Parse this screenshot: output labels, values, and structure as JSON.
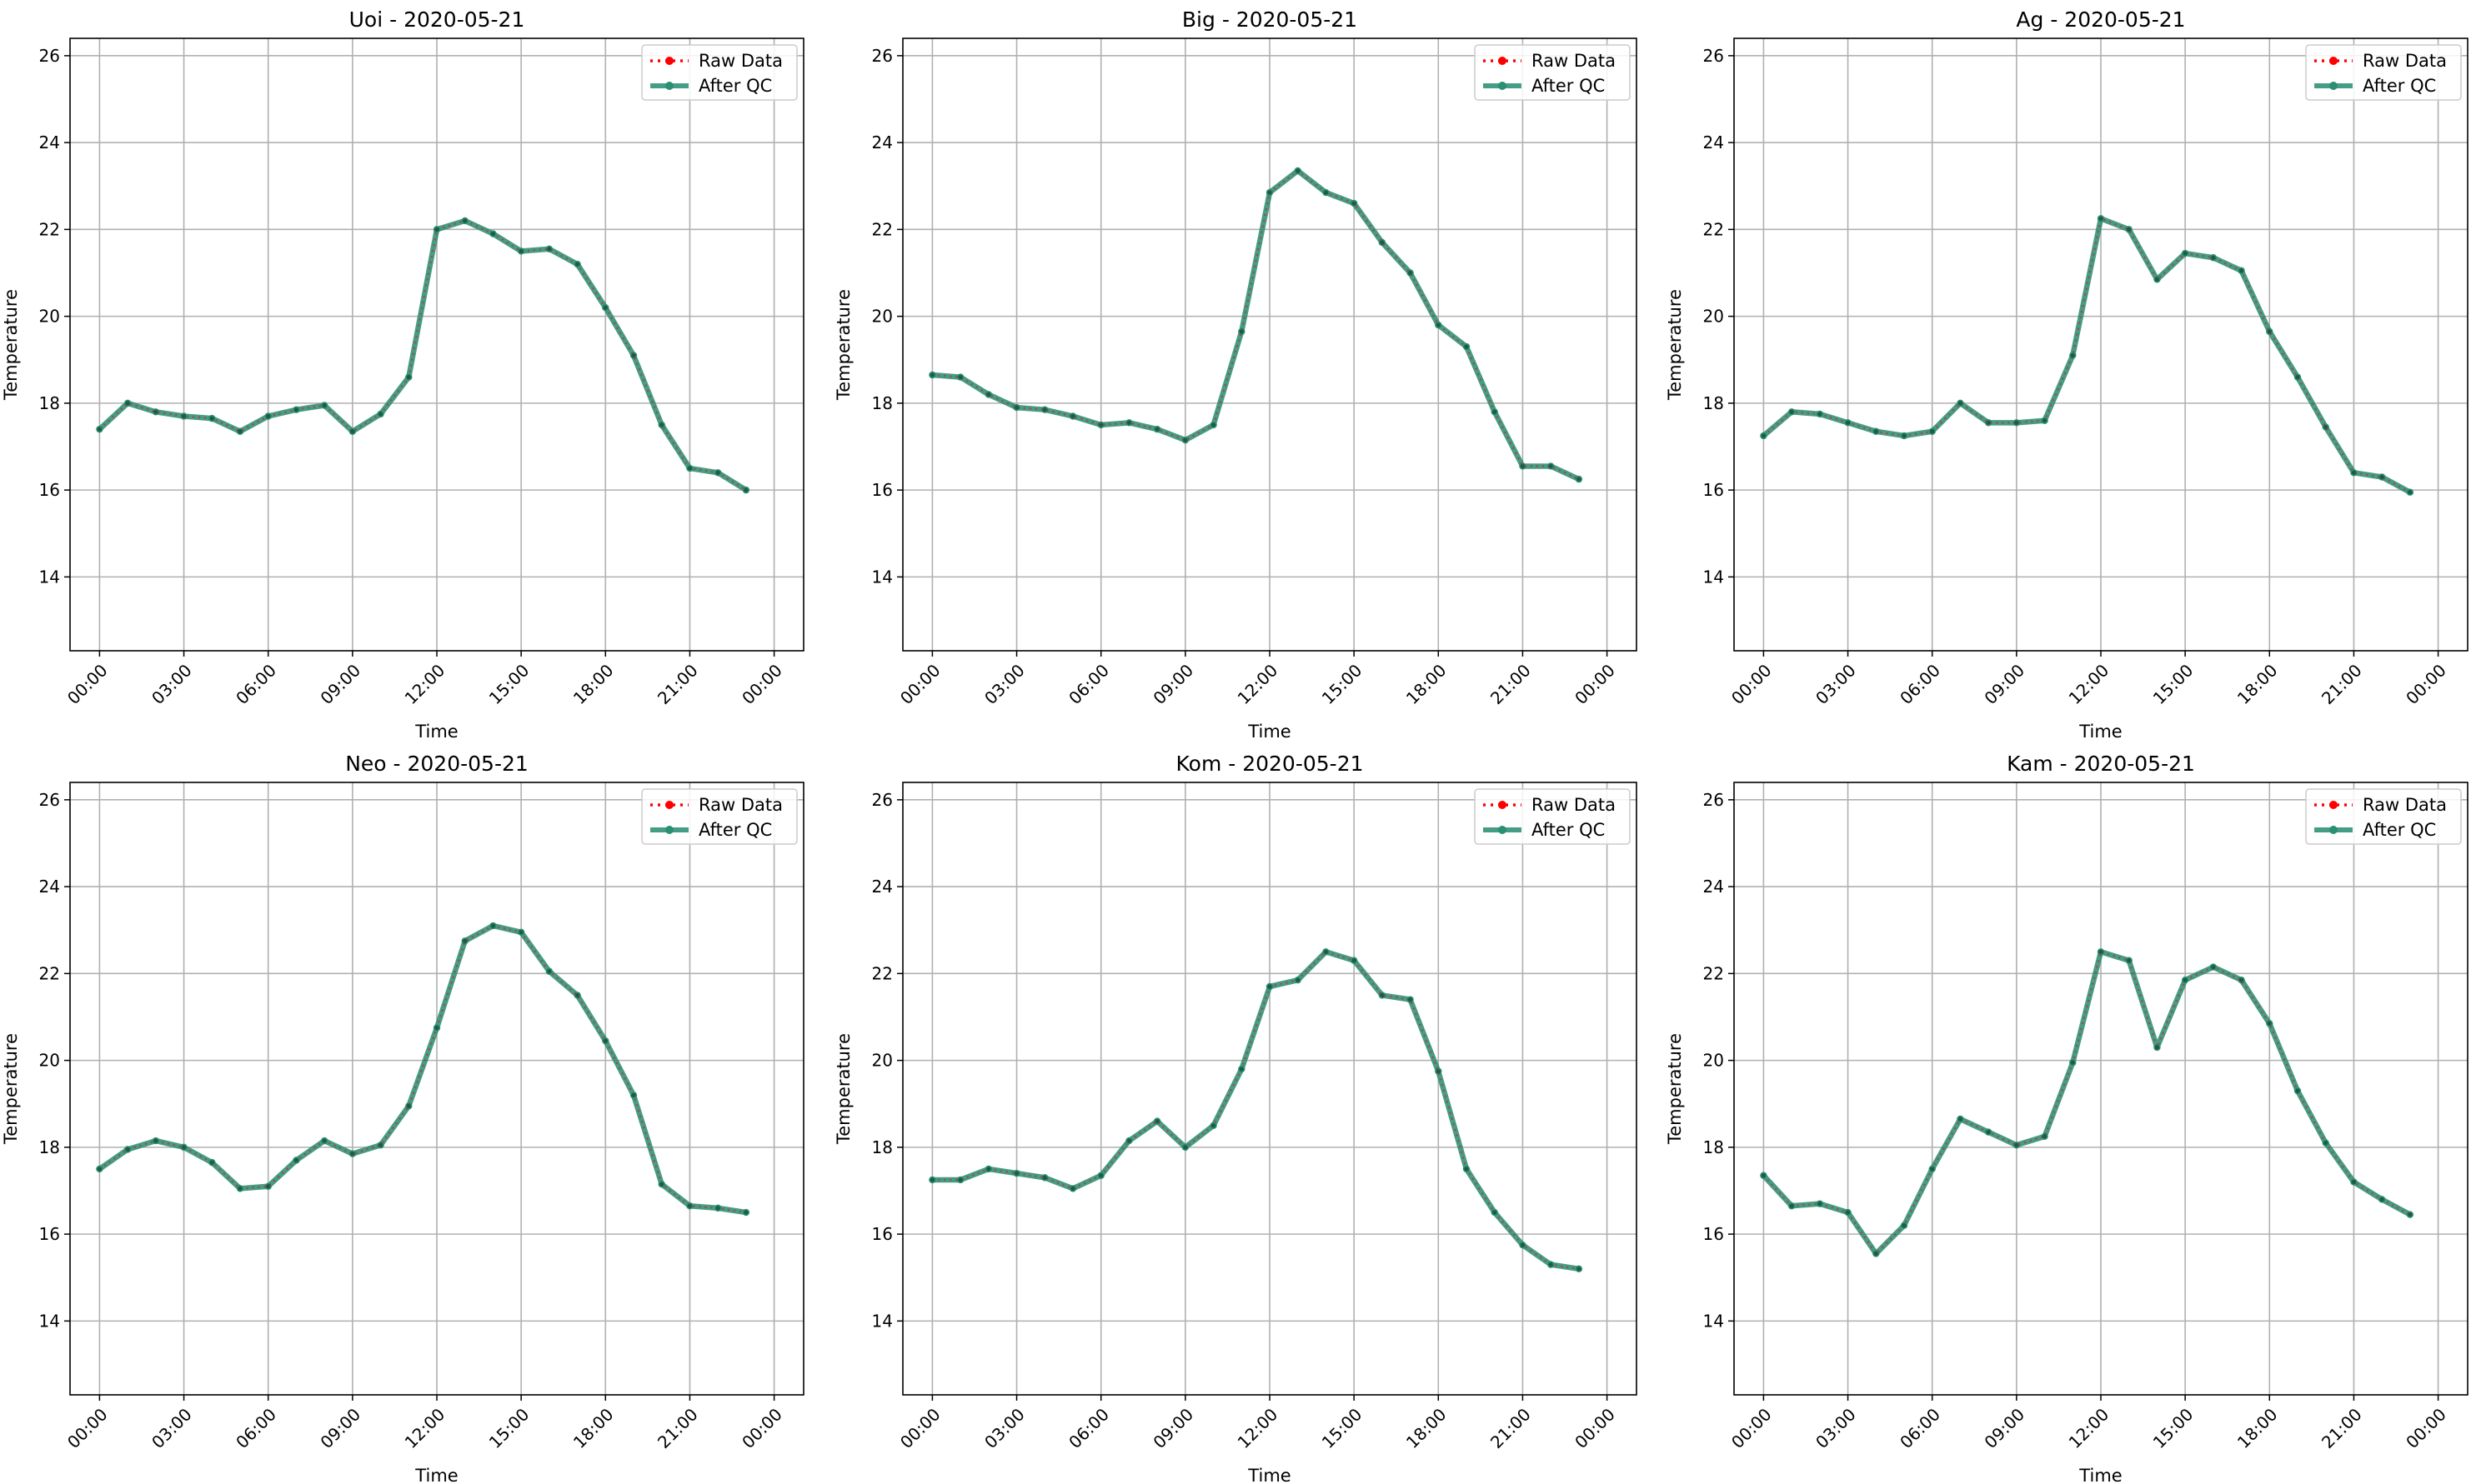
{
  "figure": {
    "background": "#ffffff"
  },
  "colors": {
    "raw": "#ff0000",
    "after_qc": "#2a8f73",
    "grid": "#b0b0b0",
    "axes": "#000000"
  },
  "legend": {
    "raw_label": "Raw Data",
    "qc_label": "After QC",
    "placement": "upper right"
  },
  "chart_data": [
    {
      "type": "line",
      "title": "Uoi - 2020-05-21",
      "xlabel": "Time",
      "ylabel": "Temperature",
      "xticks": [
        "00:00",
        "03:00",
        "06:00",
        "09:00",
        "12:00",
        "15:00",
        "18:00",
        "21:00",
        "00:00"
      ],
      "yticks": [
        14,
        16,
        18,
        20,
        22,
        24,
        26
      ],
      "ylim": [
        12.3,
        26.4
      ],
      "grid": true,
      "x_hours": [
        0,
        1,
        2,
        3,
        4,
        5,
        6,
        7,
        8,
        9,
        10,
        11,
        12,
        13,
        14,
        15,
        16,
        17,
        18,
        19,
        20,
        21,
        22,
        23
      ],
      "series": [
        {
          "name": "Raw Data",
          "values": [
            17.4,
            18.0,
            17.8,
            17.7,
            17.65,
            17.35,
            17.7,
            17.85,
            17.95,
            17.35,
            17.75,
            18.6,
            22.0,
            22.2,
            21.9,
            21.5,
            21.55,
            21.2,
            20.2,
            19.1,
            17.5,
            16.5,
            16.4,
            16.0
          ]
        },
        {
          "name": "After QC",
          "values": [
            17.4,
            18.0,
            17.8,
            17.7,
            17.65,
            17.35,
            17.7,
            17.85,
            17.95,
            17.35,
            17.75,
            18.6,
            22.0,
            22.2,
            21.9,
            21.5,
            21.55,
            21.2,
            20.2,
            19.1,
            17.5,
            16.5,
            16.4,
            16.0
          ]
        }
      ]
    },
    {
      "type": "line",
      "title": "Big - 2020-05-21",
      "xlabel": "Time",
      "ylabel": "Temperature",
      "xticks": [
        "00:00",
        "03:00",
        "06:00",
        "09:00",
        "12:00",
        "15:00",
        "18:00",
        "21:00",
        "00:00"
      ],
      "yticks": [
        14,
        16,
        18,
        20,
        22,
        24,
        26
      ],
      "ylim": [
        12.3,
        26.4
      ],
      "grid": true,
      "x_hours": [
        0,
        1,
        2,
        3,
        4,
        5,
        6,
        7,
        8,
        9,
        10,
        11,
        12,
        13,
        14,
        15,
        16,
        17,
        18,
        19,
        20,
        21,
        22,
        23
      ],
      "series": [
        {
          "name": "Raw Data",
          "values": [
            18.65,
            18.6,
            18.2,
            17.9,
            17.85,
            17.7,
            17.5,
            17.55,
            17.4,
            17.15,
            17.5,
            19.65,
            22.85,
            23.35,
            22.85,
            22.6,
            21.7,
            21.0,
            19.8,
            19.3,
            17.8,
            16.55,
            16.55,
            16.25
          ]
        },
        {
          "name": "After QC",
          "values": [
            18.65,
            18.6,
            18.2,
            17.9,
            17.85,
            17.7,
            17.5,
            17.55,
            17.4,
            17.15,
            17.5,
            19.65,
            22.85,
            23.35,
            22.85,
            22.6,
            21.7,
            21.0,
            19.8,
            19.3,
            17.8,
            16.55,
            16.55,
            16.25
          ]
        }
      ]
    },
    {
      "type": "line",
      "title": "Ag - 2020-05-21",
      "xlabel": "Time",
      "ylabel": "Temperature",
      "xticks": [
        "00:00",
        "03:00",
        "06:00",
        "09:00",
        "12:00",
        "15:00",
        "18:00",
        "21:00",
        "00:00"
      ],
      "yticks": [
        14,
        16,
        18,
        20,
        22,
        24,
        26
      ],
      "ylim": [
        12.3,
        26.4
      ],
      "grid": true,
      "x_hours": [
        0,
        1,
        2,
        3,
        4,
        5,
        6,
        7,
        8,
        9,
        10,
        11,
        12,
        13,
        14,
        15,
        16,
        17,
        18,
        19,
        20,
        21,
        22,
        23
      ],
      "series": [
        {
          "name": "Raw Data",
          "values": [
            17.25,
            17.8,
            17.75,
            17.55,
            17.35,
            17.25,
            17.35,
            18.0,
            17.55,
            17.55,
            17.6,
            19.1,
            22.25,
            22.0,
            20.85,
            21.45,
            21.35,
            21.05,
            19.65,
            18.6,
            17.45,
            16.4,
            16.3,
            15.95
          ]
        },
        {
          "name": "After QC",
          "values": [
            17.25,
            17.8,
            17.75,
            17.55,
            17.35,
            17.25,
            17.35,
            18.0,
            17.55,
            17.55,
            17.6,
            19.1,
            22.25,
            22.0,
            20.85,
            21.45,
            21.35,
            21.05,
            19.65,
            18.6,
            17.45,
            16.4,
            16.3,
            15.95
          ]
        }
      ]
    },
    {
      "type": "line",
      "title": "Neo - 2020-05-21",
      "xlabel": "Time",
      "ylabel": "Temperature",
      "xticks": [
        "00:00",
        "03:00",
        "06:00",
        "09:00",
        "12:00",
        "15:00",
        "18:00",
        "21:00",
        "00:00"
      ],
      "yticks": [
        14,
        16,
        18,
        20,
        22,
        24,
        26
      ],
      "ylim": [
        12.3,
        26.4
      ],
      "grid": true,
      "x_hours": [
        0,
        1,
        2,
        3,
        4,
        5,
        6,
        7,
        8,
        9,
        10,
        11,
        12,
        13,
        14,
        15,
        16,
        17,
        18,
        19,
        20,
        21,
        22,
        23
      ],
      "series": [
        {
          "name": "Raw Data",
          "values": [
            17.5,
            17.95,
            18.15,
            18.0,
            17.65,
            17.05,
            17.1,
            17.7,
            18.15,
            17.85,
            18.05,
            18.95,
            20.75,
            22.75,
            23.1,
            22.95,
            22.05,
            21.5,
            20.45,
            19.2,
            17.15,
            16.65,
            16.6,
            16.5
          ]
        },
        {
          "name": "After QC",
          "values": [
            17.5,
            17.95,
            18.15,
            18.0,
            17.65,
            17.05,
            17.1,
            17.7,
            18.15,
            17.85,
            18.05,
            18.95,
            20.75,
            22.75,
            23.1,
            22.95,
            22.05,
            21.5,
            20.45,
            19.2,
            17.15,
            16.65,
            16.6,
            16.5
          ]
        }
      ]
    },
    {
      "type": "line",
      "title": "Kom - 2020-05-21",
      "xlabel": "Time",
      "ylabel": "Temperature",
      "xticks": [
        "00:00",
        "03:00",
        "06:00",
        "09:00",
        "12:00",
        "15:00",
        "18:00",
        "21:00",
        "00:00"
      ],
      "yticks": [
        14,
        16,
        18,
        20,
        22,
        24,
        26
      ],
      "ylim": [
        12.3,
        26.4
      ],
      "grid": true,
      "x_hours": [
        0,
        1,
        2,
        3,
        4,
        5,
        6,
        7,
        8,
        9,
        10,
        11,
        12,
        13,
        14,
        15,
        16,
        17,
        18,
        19,
        20,
        21,
        22,
        23
      ],
      "series": [
        {
          "name": "Raw Data",
          "values": [
            17.25,
            17.25,
            17.5,
            17.4,
            17.3,
            17.05,
            17.35,
            18.15,
            18.6,
            18.0,
            18.5,
            19.8,
            21.7,
            21.85,
            22.5,
            22.3,
            21.5,
            21.4,
            19.75,
            17.5,
            16.5,
            15.75,
            15.3,
            15.2
          ]
        },
        {
          "name": "After QC",
          "values": [
            17.25,
            17.25,
            17.5,
            17.4,
            17.3,
            17.05,
            17.35,
            18.15,
            18.6,
            18.0,
            18.5,
            19.8,
            21.7,
            21.85,
            22.5,
            22.3,
            21.5,
            21.4,
            19.75,
            17.5,
            16.5,
            15.75,
            15.3,
            15.2
          ]
        }
      ]
    },
    {
      "type": "line",
      "title": "Kam - 2020-05-21",
      "xlabel": "Time",
      "ylabel": "Temperature",
      "xticks": [
        "00:00",
        "03:00",
        "06:00",
        "09:00",
        "12:00",
        "15:00",
        "18:00",
        "21:00",
        "00:00"
      ],
      "yticks": [
        14,
        16,
        18,
        20,
        22,
        24,
        26
      ],
      "ylim": [
        12.3,
        26.4
      ],
      "grid": true,
      "x_hours": [
        0,
        1,
        2,
        3,
        4,
        5,
        6,
        7,
        8,
        9,
        10,
        11,
        12,
        13,
        14,
        15,
        16,
        17,
        18,
        19,
        20,
        21,
        22,
        23
      ],
      "series": [
        {
          "name": "Raw Data",
          "values": [
            17.35,
            16.65,
            16.7,
            16.5,
            15.55,
            16.2,
            17.5,
            18.65,
            18.35,
            18.05,
            18.25,
            19.95,
            22.5,
            22.3,
            20.3,
            21.85,
            22.15,
            21.85,
            20.85,
            19.3,
            18.1,
            17.2,
            16.8,
            16.45
          ]
        },
        {
          "name": "After QC",
          "values": [
            17.35,
            16.65,
            16.7,
            16.5,
            15.55,
            16.2,
            17.5,
            18.65,
            18.35,
            18.05,
            18.25,
            19.95,
            22.5,
            22.3,
            20.3,
            21.85,
            22.15,
            21.85,
            20.85,
            19.3,
            18.1,
            17.2,
            16.8,
            16.45
          ]
        }
      ]
    }
  ]
}
